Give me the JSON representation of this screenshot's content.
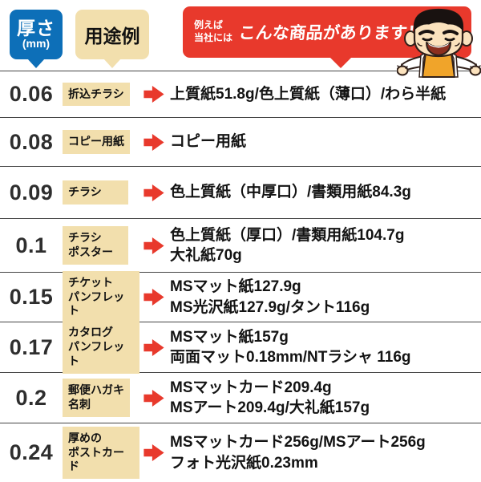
{
  "header": {
    "thickness_label": "厚さ",
    "thickness_unit": "(mm)",
    "usage_label": "用途例",
    "promo": {
      "small_line1": "例えば",
      "small_line2": "当社には",
      "large": "こんな商品があります！"
    },
    "mascot_icon": "smiling-man-mascot"
  },
  "colors": {
    "blue": "#0d6fb8",
    "tan": "#f2dfad",
    "red": "#e8392c",
    "divider": "#454545",
    "text": "#131313"
  },
  "table": {
    "rows": [
      {
        "thickness": "0.06",
        "usage_lines": [
          "折込チラシ"
        ],
        "product_lines": [
          "上質紙51.8g/色上質紙（薄口）/わら半紙"
        ]
      },
      {
        "thickness": "0.08",
        "usage_lines": [
          "コピー用紙"
        ],
        "product_lines": [
          "コピー用紙"
        ]
      },
      {
        "thickness": "0.09",
        "usage_lines": [
          "チラシ"
        ],
        "product_lines": [
          "色上質紙（中厚口）/書類用紙84.3g"
        ]
      },
      {
        "thickness": "0.1",
        "usage_lines": [
          "チラシ",
          "ポスター"
        ],
        "product_lines": [
          "色上質紙（厚口）/書類用紙104.7g",
          "大礼紙70g"
        ]
      },
      {
        "thickness": "0.15",
        "usage_lines": [
          "チケット",
          "パンフレット"
        ],
        "product_lines": [
          "MSマット紙127.9g",
          "MS光沢紙127.9g/タント116g"
        ]
      },
      {
        "thickness": "0.17",
        "usage_lines": [
          "カタログ",
          "パンフレット"
        ],
        "product_lines": [
          "MSマット紙157g",
          "両面マット0.18mm/NTラシャ 116g"
        ]
      },
      {
        "thickness": "0.2",
        "usage_lines": [
          "郵便ハガキ",
          "名刺"
        ],
        "product_lines": [
          "MSマットカード209.4g",
          "MSアート209.4g/大礼紙157g"
        ]
      },
      {
        "thickness": "0.24",
        "usage_lines": [
          "厚めの",
          "ポストカード"
        ],
        "product_lines": [
          "MSマットカード256g/MSアート256g",
          "フォト光沢紙0.23mm"
        ]
      }
    ]
  }
}
